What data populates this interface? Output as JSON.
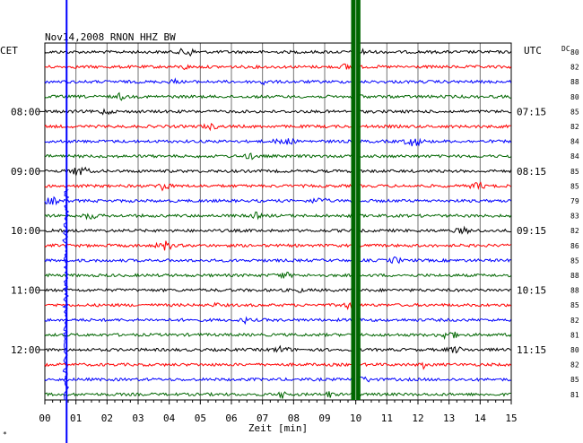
{
  "header": {
    "title": "Nov14,2008  RNON HHZ BW",
    "left_zone": "CET",
    "right_zone": "UTC",
    "dc_label": "DC"
  },
  "chart_data": {
    "type": "line",
    "title": "Nov14,2008  RNON HHZ BW",
    "xlabel": "Zeit [min]",
    "ylabel": "",
    "xlim": [
      0,
      15
    ],
    "x_ticks": [
      "00",
      "01",
      "02",
      "03",
      "04",
      "05",
      "06",
      "07",
      "08",
      "09",
      "10",
      "11",
      "12",
      "13",
      "14",
      "15"
    ],
    "left_time_labels": [
      "08:00",
      "09:00",
      "10:00",
      "11:00",
      "12:00"
    ],
    "right_time_labels": [
      "07:15",
      "08:15",
      "09:15",
      "10:15",
      "11:15"
    ],
    "label_traces": [
      4,
      8,
      12,
      16,
      20
    ],
    "trace_colors": [
      "#000000",
      "#ff0000",
      "#0000ff",
      "#006600"
    ],
    "dc_values": [
      "80",
      "82",
      "88",
      "80",
      "85",
      "82",
      "84",
      "84",
      "85",
      "85",
      "79",
      "83",
      "82",
      "86",
      "85",
      "88",
      "88",
      "85",
      "82",
      "81",
      "80",
      "82",
      "85",
      "81"
    ],
    "events": [
      {
        "type": "vertical-line",
        "x": 0.7,
        "color": "#0000ff",
        "full_height": true
      },
      {
        "type": "band",
        "x_start": 9.85,
        "x_end": 10.15,
        "color": "#006600"
      }
    ],
    "grid": true,
    "bottom_left_mark": "*"
  }
}
